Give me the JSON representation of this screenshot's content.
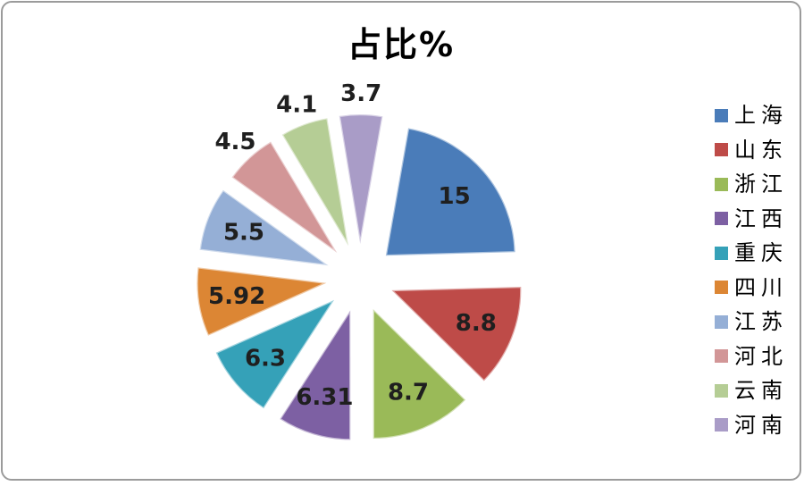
{
  "chart_data": {
    "type": "pie",
    "style": "exploded-pie",
    "title": "占比%",
    "legend_position": "right",
    "categories": [
      "上海",
      "山东",
      "浙江",
      "江西",
      "重庆",
      "四川",
      "江苏",
      "河北",
      "云南",
      "河南"
    ],
    "values": [
      15,
      8.8,
      8.7,
      6.31,
      6.3,
      5.92,
      5.5,
      4.5,
      4.1,
      3.7
    ],
    "labels": [
      "15",
      "8.8",
      "8.7",
      "6.31",
      "6.3",
      "5.92",
      "5.5",
      "4.5",
      "4.1",
      "3.7"
    ],
    "label_placement": [
      "inside",
      "inside",
      "inside",
      "inside",
      "inside",
      "inside",
      "inside",
      "outside",
      "outside",
      "outside"
    ],
    "colors": [
      "#4A7CB9",
      "#BE4B48",
      "#9ABA58",
      "#7D60A3",
      "#35A1B8",
      "#DC8634",
      "#95AFD6",
      "#D29697",
      "#B5CD95",
      "#A99CC7"
    ],
    "title_color": "#000000",
    "label_color": "#1F1F1F"
  }
}
